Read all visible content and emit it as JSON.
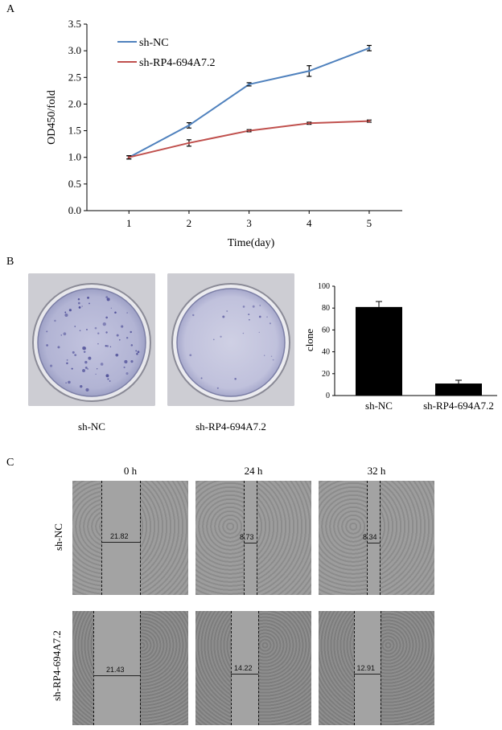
{
  "panels": {
    "a": "A",
    "b": "B",
    "c": "C"
  },
  "chart_data": [
    {
      "type": "line",
      "x": [
        1,
        2,
        3,
        4,
        5
      ],
      "xlabel": "Time(day)",
      "ylabel": "OD450/fold",
      "ylim": [
        0,
        3.5
      ],
      "yticks": [
        "0.0",
        "0.5",
        "1.0",
        "1.5",
        "2.0",
        "2.5",
        "3.0",
        "3.5"
      ],
      "xticks": [
        "1",
        "2",
        "3",
        "4",
        "5"
      ],
      "grid": false,
      "legend_position": "top-left",
      "series": [
        {
          "name": "sh-NC",
          "color": "#4f81bd",
          "values": [
            1.0,
            1.6,
            2.37,
            2.62,
            3.05
          ],
          "errors": [
            0.03,
            0.05,
            0.03,
            0.1,
            0.05
          ]
        },
        {
          "name": "sh-RP4-694A7.2",
          "color": "#c0504d",
          "values": [
            1.0,
            1.27,
            1.5,
            1.64,
            1.68
          ],
          "errors": [
            0.03,
            0.06,
            0.02,
            0.02,
            0.02
          ]
        }
      ]
    },
    {
      "type": "bar",
      "categories": [
        "sh-NC",
        "sh-RP4-694A7.2"
      ],
      "values": [
        81,
        11
      ],
      "errors": [
        5,
        3
      ],
      "ylabel": "clone",
      "ylim": [
        0,
        100
      ],
      "yticks": [
        "0",
        "20",
        "40",
        "60",
        "80",
        "100"
      ],
      "bar_color": "#000000"
    }
  ],
  "plates": {
    "captions": [
      "sh-NC",
      "sh-RP4-694A7.2"
    ]
  },
  "wound": {
    "timepoints": [
      "0 h",
      "24 h",
      "32 h"
    ],
    "rows": [
      {
        "label": "sh-NC",
        "widths": [
          "21.82",
          "8.73",
          "8.34"
        ]
      },
      {
        "label": "sh-RP4-694A7.2",
        "widths": [
          "21.43",
          "14.22",
          "12.91"
        ]
      }
    ]
  }
}
